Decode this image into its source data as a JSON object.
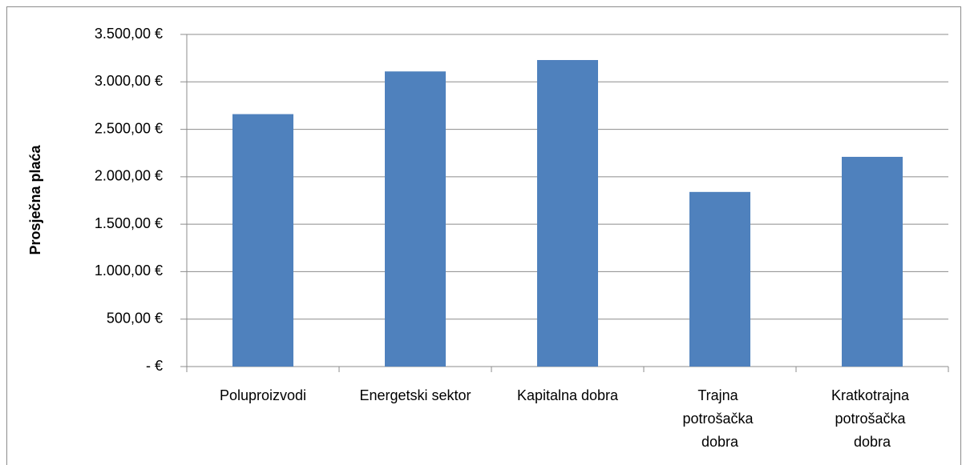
{
  "chart_data": {
    "type": "bar",
    "y_axis_label": "Prosječna plaća",
    "categories": [
      "Poluproizvodi",
      "Energetski sektor",
      "Kapitalna dobra",
      "Trajna potrošačka dobra",
      "Kratkotrajna potrošačka dobra"
    ],
    "values": [
      2660,
      3110,
      3230,
      1840,
      2210
    ],
    "color": "#4f81bd",
    "ylim": [
      0,
      3500
    ],
    "yticks": [
      {
        "value": 0,
        "label": "-  €"
      },
      {
        "value": 500,
        "label": "500,00 €"
      },
      {
        "value": 1000,
        "label": "1.000,00 €"
      },
      {
        "value": 1500,
        "label": "1.500,00 €"
      },
      {
        "value": 2000,
        "label": "2.000,00 €"
      },
      {
        "value": 2500,
        "label": "2.500,00 €"
      },
      {
        "value": 3000,
        "label": "3.000,00 €"
      },
      {
        "value": 3500,
        "label": "3.500,00 €"
      }
    ],
    "grid": true
  }
}
